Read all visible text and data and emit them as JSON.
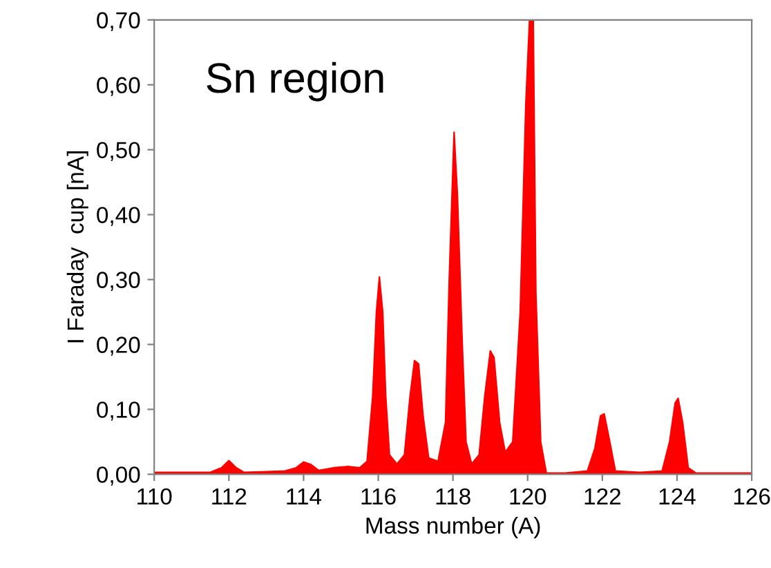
{
  "chart_data": {
    "type": "area",
    "xlabel": "Mass number (A)",
    "ylabel": "I Faraday  cup [nA]",
    "annotations": [
      "Sn region"
    ],
    "series": [
      {
        "color": "#ff0000",
        "x": [
          110,
          111.5,
          111.8,
          112,
          112.2,
          112.4,
          113,
          113.5,
          113.8,
          114,
          114.2,
          114.4,
          114.8,
          115.2,
          115.5,
          115.7,
          115.85,
          115.95,
          116.03,
          116.12,
          116.2,
          116.3,
          116.5,
          116.7,
          116.85,
          116.97,
          117.08,
          117.2,
          117.35,
          117.6,
          117.8,
          117.9,
          118.03,
          118.12,
          118.25,
          118.35,
          118.5,
          118.7,
          118.85,
          119.0,
          119.1,
          119.25,
          119.4,
          119.6,
          119.8,
          119.95,
          120.05,
          120.15,
          120.22,
          120.35,
          120.5,
          121,
          121.6,
          121.8,
          121.95,
          122.05,
          122.2,
          122.35,
          123,
          123.6,
          123.8,
          123.95,
          124.03,
          124.15,
          124.3,
          124.5,
          126
        ],
        "values": [
          0.003,
          0.003,
          0.01,
          0.021,
          0.01,
          0.003,
          0.004,
          0.005,
          0.01,
          0.019,
          0.015,
          0.006,
          0.01,
          0.012,
          0.01,
          0.02,
          0.12,
          0.25,
          0.304,
          0.25,
          0.12,
          0.03,
          0.016,
          0.03,
          0.12,
          0.175,
          0.17,
          0.09,
          0.025,
          0.02,
          0.08,
          0.3,
          0.527,
          0.43,
          0.2,
          0.05,
          0.016,
          0.03,
          0.12,
          0.19,
          0.18,
          0.08,
          0.034,
          0.05,
          0.25,
          0.57,
          0.7,
          0.7,
          0.28,
          0.05,
          0.002,
          0.002,
          0.005,
          0.04,
          0.09,
          0.093,
          0.05,
          0.005,
          0.003,
          0.005,
          0.05,
          0.11,
          0.117,
          0.08,
          0.01,
          0.002,
          0.002
        ]
      }
    ],
    "xlim": [
      110,
      126
    ],
    "xticks": [
      110,
      112,
      114,
      116,
      118,
      120,
      122,
      124,
      126
    ],
    "ylim": [
      0,
      0.7
    ],
    "yticks": [
      {
        "value": 0,
        "label": "0,00"
      },
      {
        "value": 0.1,
        "label": "0,10"
      },
      {
        "value": 0.2,
        "label": "0,20"
      },
      {
        "value": 0.3,
        "label": "0,30"
      },
      {
        "value": 0.4,
        "label": "0,40"
      },
      {
        "value": 0.5,
        "label": "0,50"
      },
      {
        "value": 0.6,
        "label": "0,60"
      },
      {
        "value": 0.7,
        "label": "0,70"
      }
    ],
    "grid": false,
    "legend": false
  }
}
